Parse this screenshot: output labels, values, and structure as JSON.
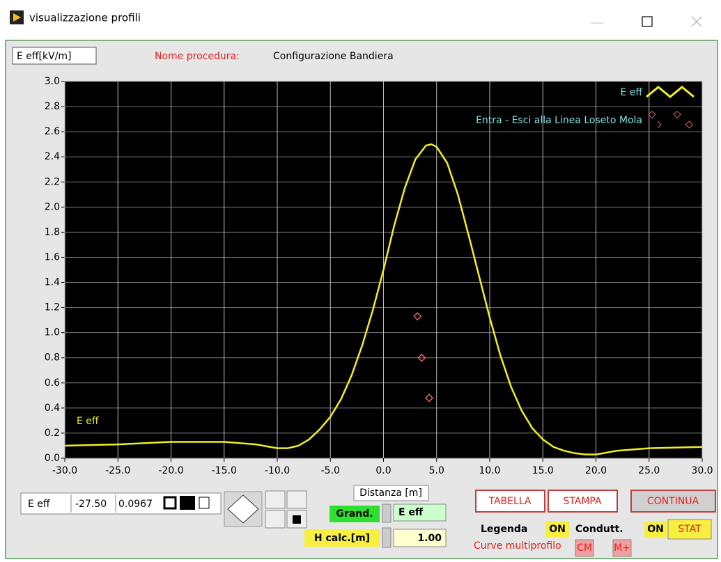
{
  "window": {
    "title": "visualizzazione profili"
  },
  "header": {
    "y_label": "E eff[kV/m]",
    "procedure_label": "Nome procedura:",
    "procedure_name": "Configurazione Bandiera"
  },
  "chart_data": {
    "type": "line",
    "annotation": "E eff",
    "x_label": "Distanza [m]",
    "xlim": [
      -30,
      30
    ],
    "ylim": [
      0,
      3
    ],
    "grid": true,
    "legend": "upper right",
    "xticks": [
      {
        "value": -30,
        "label": "-30.0"
      },
      {
        "value": -25,
        "label": "-25.0"
      },
      {
        "value": -20,
        "label": "-20.0"
      },
      {
        "value": -15,
        "label": "-15.0"
      },
      {
        "value": -10,
        "label": "-10.0"
      },
      {
        "value": -5,
        "label": "-5.0"
      },
      {
        "value": 0,
        "label": "0.0"
      },
      {
        "value": 5,
        "label": "5.0"
      },
      {
        "value": 10,
        "label": "10.0"
      },
      {
        "value": 15,
        "label": "15.0"
      },
      {
        "value": 20,
        "label": "20.0"
      },
      {
        "value": 25,
        "label": "25.0"
      },
      {
        "value": 30,
        "label": "30.0"
      }
    ],
    "yticks": [
      {
        "value": 0,
        "label": "0.0"
      },
      0.2,
      0.4,
      0.6,
      0.8,
      {
        "value": 1,
        "label": "1.0"
      },
      1.2,
      1.4,
      1.6,
      1.8,
      {
        "value": 2,
        "label": "2.0"
      },
      2.2,
      2.4,
      2.6,
      2.8,
      {
        "value": 3,
        "label": "3.0"
      }
    ],
    "series": [
      {
        "name": "E eff",
        "type": "line",
        "color": "#f0f020",
        "x": [
          -30,
          -25,
          -20,
          -15,
          -12,
          -10,
          -9,
          -8,
          -7,
          -6,
          -5,
          -4,
          -3,
          -2,
          -1,
          0,
          1,
          2,
          3,
          4,
          4.5,
          5,
          6,
          7,
          8,
          9,
          10,
          11,
          12,
          13,
          14,
          15,
          16,
          17,
          18,
          19,
          20,
          22,
          25,
          30
        ],
        "values": [
          0.1,
          0.11,
          0.13,
          0.13,
          0.11,
          0.08,
          0.08,
          0.1,
          0.15,
          0.23,
          0.33,
          0.47,
          0.66,
          0.9,
          1.18,
          1.5,
          1.85,
          2.15,
          2.38,
          2.49,
          2.5,
          2.48,
          2.35,
          2.1,
          1.78,
          1.45,
          1.12,
          0.82,
          0.57,
          0.38,
          0.24,
          0.15,
          0.09,
          0.06,
          0.04,
          0.03,
          0.03,
          0.06,
          0.08,
          0.09
        ]
      },
      {
        "name": "Entra - Esci alla Linea  Loseto Mola",
        "type": "scatter",
        "color": "#e06868",
        "x": [
          3.2,
          3.6,
          4.3
        ],
        "values": [
          1.13,
          0.8,
          0.48
        ]
      }
    ]
  },
  "cursor": {
    "name": "E eff",
    "x": "-27.50",
    "y": "0.0967"
  },
  "controls": {
    "grand_label": "Grand.",
    "grand_value": "E eff",
    "h_label": "H calc.[m]",
    "h_value": "1.00",
    "tabella": "TABELLA",
    "stampa": "STAMPA",
    "continua": "CONTINUA",
    "legenda": "Legenda",
    "legenda_state": "ON",
    "condutt": "Condutt.",
    "condutt_state": "ON",
    "stat": "STAT",
    "multiprofilo": "Curve multiprofilo",
    "cm": "CM",
    "mplus": "M+"
  }
}
